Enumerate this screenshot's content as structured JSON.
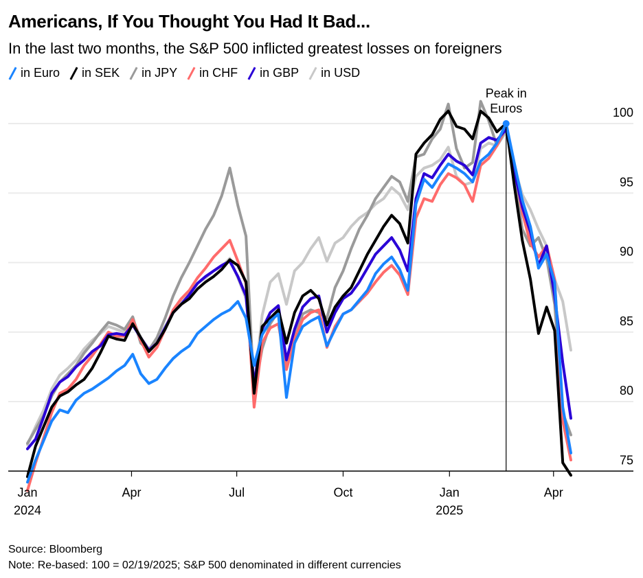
{
  "header": {
    "title": "Americans, If You Thought You Had It Bad...",
    "subtitle": "In the last two months, the S&P 500 inflicted greatest losses on foreigners"
  },
  "legend": [
    {
      "label": "in Euro",
      "color": "#1a84ff"
    },
    {
      "label": "in SEK",
      "color": "#000000"
    },
    {
      "label": "in JPY",
      "color": "#9a9a9a"
    },
    {
      "label": "in CHF",
      "color": "#ff6b6b"
    },
    {
      "label": "in GBP",
      "color": "#2a00d6"
    },
    {
      "label": "in USD",
      "color": "#c8c8c8"
    }
  ],
  "footer": {
    "source": "Source: Bloomberg",
    "note": "Note: Re-based: 100 = 02/19/2025; S&P 500 denominated in different currencies"
  },
  "chart_data": {
    "type": "line",
    "title": "Americans, If You Thought You Had It Bad...",
    "subtitle": "In the last two months, the S&P 500 inflicted greatest losses on foreigners",
    "xlabel": "",
    "ylabel": "",
    "x_unit": "days since 2024-01-02",
    "x_range": [
      -15,
      510
    ],
    "ylim": [
      75,
      101.5
    ],
    "y_ticks": [
      75,
      80,
      85,
      90,
      95,
      100
    ],
    "y_axis_side": "right",
    "x_ticks": [
      {
        "day": 0,
        "label": "Jan",
        "sublabel": "2024"
      },
      {
        "day": 90,
        "label": "Apr",
        "sublabel": ""
      },
      {
        "day": 181,
        "label": "Jul",
        "sublabel": ""
      },
      {
        "day": 273,
        "label": "Oct",
        "sublabel": ""
      },
      {
        "day": 365,
        "label": "Jan",
        "sublabel": "2025"
      },
      {
        "day": 455,
        "label": "Apr",
        "sublabel": ""
      }
    ],
    "grid": true,
    "legend_position": "top-left",
    "annotation": {
      "text_lines": [
        "Peak in",
        "Euros"
      ],
      "day": 414,
      "value": 100,
      "series": "in Euro"
    },
    "x": [
      0,
      7,
      14,
      21,
      28,
      35,
      42,
      49,
      56,
      63,
      70,
      77,
      84,
      91,
      98,
      105,
      112,
      119,
      126,
      133,
      140,
      147,
      154,
      161,
      168,
      175,
      182,
      189,
      196,
      203,
      210,
      217,
      224,
      231,
      238,
      245,
      252,
      259,
      266,
      273,
      280,
      287,
      294,
      301,
      308,
      315,
      322,
      329,
      336,
      343,
      350,
      357,
      364,
      371,
      378,
      385,
      392,
      399,
      406,
      414,
      421,
      428,
      435,
      442,
      449,
      456,
      463,
      470
    ],
    "series": [
      {
        "name": "in Euro",
        "color": "#1a84ff",
        "values": [
          74.2,
          75.8,
          77.2,
          78.6,
          79.4,
          79.2,
          80.1,
          80.6,
          80.9,
          81.3,
          81.7,
          82.2,
          82.6,
          83.4,
          82.0,
          81.3,
          81.6,
          82.4,
          83.1,
          83.6,
          84.0,
          84.9,
          85.4,
          85.9,
          86.3,
          86.6,
          87.2,
          86.0,
          82.6,
          84.8,
          85.8,
          86.3,
          80.3,
          84.2,
          85.4,
          85.8,
          86.1,
          84.0,
          85.2,
          86.3,
          86.6,
          87.3,
          88.0,
          89.2,
          89.9,
          90.4,
          89.5,
          88.0,
          94.2,
          96.0,
          95.4,
          96.3,
          97.1,
          96.8,
          96.4,
          95.8,
          97.3,
          97.8,
          98.6,
          100.0,
          97.2,
          94.5,
          92.6,
          89.6,
          90.6,
          88.6,
          79.6,
          76.3
        ]
      },
      {
        "name": "in SEK",
        "color": "#000000",
        "values": [
          74.6,
          76.8,
          78.2,
          79.6,
          80.4,
          80.7,
          81.2,
          81.6,
          82.4,
          83.5,
          84.7,
          84.5,
          84.4,
          85.6,
          84.6,
          83.6,
          84.2,
          85.2,
          86.4,
          87.0,
          87.4,
          88.1,
          88.6,
          89.0,
          89.5,
          90.2,
          89.8,
          88.6,
          80.6,
          85.4,
          86.0,
          86.6,
          84.2,
          86.4,
          87.6,
          88.0,
          87.4,
          85.5,
          86.8,
          87.6,
          88.2,
          89.4,
          90.6,
          91.6,
          92.6,
          93.4,
          92.8,
          91.4,
          97.8,
          98.6,
          99.2,
          100.3,
          100.9,
          99.8,
          99.6,
          98.9,
          100.9,
          100.4,
          99.4,
          100.0,
          95.6,
          91.6,
          88.8,
          84.9,
          86.8,
          85.1,
          75.6,
          74.7
        ]
      },
      {
        "name": "in JPY",
        "color": "#9a9a9a",
        "values": [
          77.0,
          78.0,
          79.0,
          80.4,
          81.4,
          82.0,
          82.6,
          83.5,
          84.2,
          85.0,
          85.7,
          85.5,
          85.2,
          86.1,
          84.2,
          83.7,
          84.6,
          86.0,
          87.6,
          88.9,
          90.0,
          91.2,
          92.4,
          93.4,
          94.8,
          96.8,
          94.1,
          91.9,
          80.6,
          83.8,
          85.6,
          86.5,
          82.4,
          84.6,
          86.3,
          86.6,
          86.4,
          86.0,
          88.2,
          89.4,
          91.0,
          92.4,
          93.4,
          94.6,
          95.4,
          96.2,
          95.8,
          94.4,
          97.6,
          97.8,
          98.9,
          99.6,
          101.4,
          98.2,
          96.8,
          97.2,
          101.6,
          100.2,
          98.4,
          99.6,
          96.2,
          92.4,
          91.2,
          91.8,
          90.3,
          87.0,
          79.2,
          77.6
        ]
      },
      {
        "name": "in CHF",
        "color": "#ff6b6b",
        "values": [
          73.6,
          75.6,
          77.4,
          79.2,
          80.6,
          80.9,
          81.6,
          82.6,
          83.3,
          84.1,
          85.0,
          84.7,
          84.7,
          85.9,
          84.4,
          83.2,
          83.9,
          85.2,
          86.6,
          87.4,
          88.0,
          88.9,
          89.6,
          90.4,
          91.0,
          91.6,
          90.1,
          88.5,
          79.6,
          84.2,
          85.3,
          85.6,
          82.3,
          84.5,
          85.9,
          86.4,
          86.6,
          83.9,
          85.4,
          86.3,
          86.6,
          87.2,
          87.8,
          88.6,
          89.3,
          89.8,
          89.1,
          87.7,
          93.2,
          94.6,
          94.4,
          95.6,
          96.4,
          96.1,
          95.6,
          94.4,
          97.0,
          97.5,
          98.4,
          99.8,
          97.0,
          93.6,
          91.4,
          90.4,
          91.2,
          88.8,
          78.6,
          75.8
        ]
      },
      {
        "name": "in GBP",
        "color": "#2a00d6",
        "values": [
          76.6,
          77.3,
          78.9,
          80.6,
          81.4,
          81.8,
          82.5,
          83.0,
          83.6,
          84.0,
          84.8,
          84.9,
          84.8,
          85.5,
          84.6,
          83.7,
          84.2,
          85.3,
          86.4,
          87.0,
          87.7,
          88.5,
          89.0,
          89.4,
          89.8,
          90.1,
          89.0,
          87.6,
          81.2,
          85.2,
          86.4,
          86.9,
          83.0,
          85.2,
          86.8,
          87.4,
          87.6,
          85.0,
          86.4,
          87.4,
          87.8,
          88.6,
          89.6,
          90.6,
          91.2,
          91.8,
          90.9,
          89.4,
          94.6,
          96.4,
          96.1,
          97.0,
          97.8,
          97.3,
          97.0,
          96.3,
          98.6,
          99.0,
          98.8,
          99.6,
          96.6,
          94.0,
          92.2,
          89.8,
          91.2,
          87.6,
          82.8,
          78.8
        ]
      },
      {
        "name": "in USD",
        "color": "#c8c8c8",
        "values": [
          76.9,
          78.2,
          79.4,
          80.9,
          81.9,
          82.4,
          83.0,
          83.8,
          84.4,
          84.9,
          85.4,
          85.2,
          85.0,
          85.9,
          84.6,
          83.8,
          84.4,
          85.4,
          86.4,
          87.2,
          87.8,
          88.5,
          88.9,
          89.4,
          89.7,
          90.3,
          88.9,
          87.4,
          81.0,
          86.2,
          88.6,
          89.2,
          87.0,
          89.4,
          90.0,
          91.0,
          91.8,
          90.1,
          91.4,
          91.8,
          92.6,
          93.2,
          93.6,
          94.2,
          94.6,
          95.4,
          94.9,
          93.8,
          96.2,
          96.8,
          97.0,
          97.4,
          98.3,
          96.2,
          95.6,
          95.8,
          98.2,
          98.6,
          98.4,
          99.4,
          96.9,
          94.9,
          93.8,
          92.4,
          91.2,
          88.8,
          87.2,
          83.7
        ]
      }
    ]
  }
}
